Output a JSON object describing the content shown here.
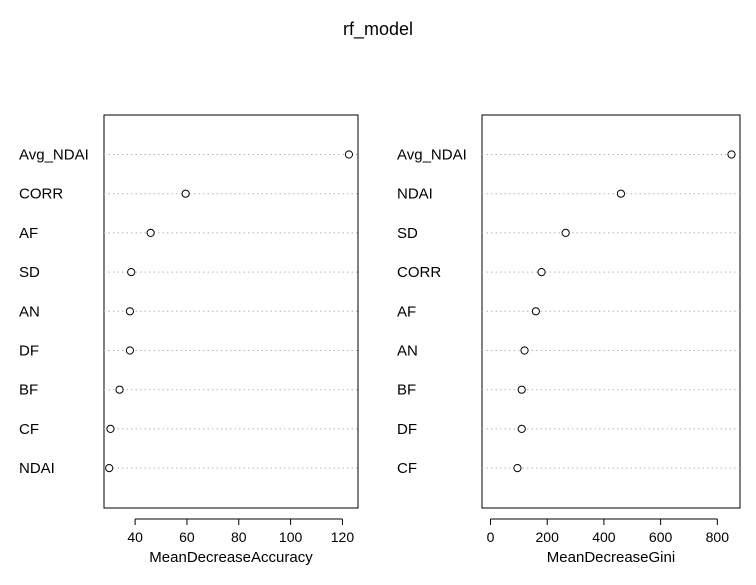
{
  "chart_data": {
    "type": "scatter",
    "title": "rf_model",
    "panels": [
      {
        "xlabel": "MeanDecreaseAccuracy",
        "xlim": [
          28,
          126
        ],
        "xticks": [
          40,
          60,
          80,
          100,
          120
        ],
        "grid": "dotted-horizontal",
        "categories": [
          "Avg_NDAI",
          "CORR",
          "AF",
          "SD",
          "AN",
          "DF",
          "BF",
          "CF",
          "NDAI"
        ],
        "values": [
          122.5,
          59.5,
          46.0,
          38.5,
          38.0,
          38.0,
          34.0,
          30.5,
          30.0
        ]
      },
      {
        "xlabel": "MeanDecreaseGini",
        "xlim": [
          -30,
          880
        ],
        "xticks": [
          0,
          200,
          400,
          600,
          800
        ],
        "grid": "dotted-horizontal",
        "categories": [
          "Avg_NDAI",
          "NDAI",
          "SD",
          "CORR",
          "AF",
          "AN",
          "BF",
          "DF",
          "CF"
        ],
        "values": [
          850,
          460,
          265,
          180,
          160,
          120,
          110,
          110,
          95
        ]
      }
    ]
  }
}
